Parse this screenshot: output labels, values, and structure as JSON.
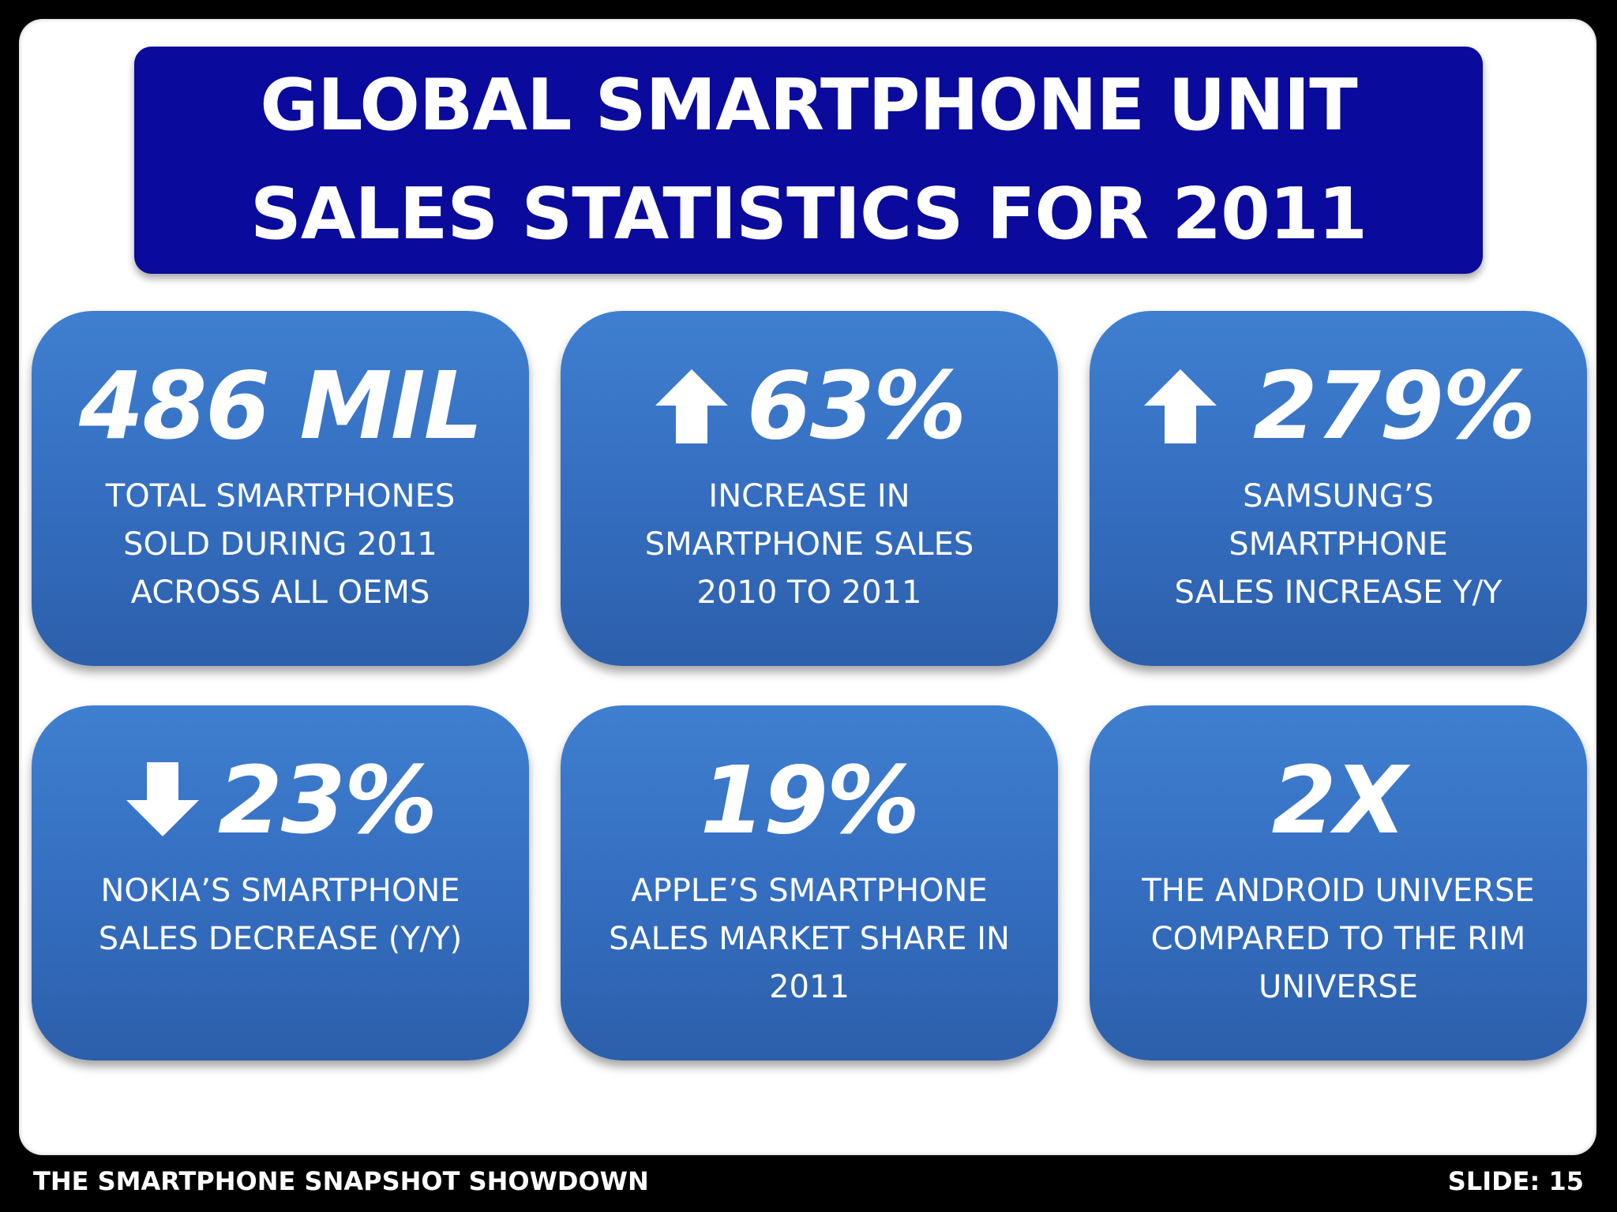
{
  "title": {
    "line1": "GLOBAL SMARTPHONE UNIT",
    "line2": "SALES STATISTICS FOR 2011"
  },
  "cards": [
    {
      "value": "486 MIL",
      "arrow": "none",
      "lines": [
        "TOTAL SMARTPHONES",
        "SOLD DURING 2011",
        "ACROSS ALL OEMS"
      ]
    },
    {
      "value": "63%",
      "arrow": "arrow-up-icon",
      "lines": [
        "INCREASE IN",
        "SMARTPHONE SALES",
        "2010 TO 2011"
      ]
    },
    {
      "value": "279%",
      "arrow": "arrow-up-icon",
      "lines": [
        "SAMSUNG’S",
        "SMARTPHONE",
        "SALES INCREASE Y/Y"
      ]
    },
    {
      "value": "23%",
      "arrow": "arrow-down-icon",
      "lines": [
        "NOKIA’S SMARTPHONE",
        "SALES DECREASE (Y/Y)"
      ]
    },
    {
      "value": "19%",
      "arrow": "none",
      "lines": [
        "APPLE’S SMARTPHONE",
        "SALES MARKET SHARE IN",
        "2011"
      ]
    },
    {
      "value": "2X",
      "arrow": "none",
      "lines": [
        "THE ANDROID UNIVERSE",
        "COMPARED TO THE RIM",
        "UNIVERSE"
      ]
    }
  ],
  "footer": {
    "left": "THE SMARTPHONE SNAPSHOT SHOWDOWN",
    "right": "SLIDE: 15"
  },
  "colors": {
    "title_bg": "#0a0a9c",
    "card_top": "#3f7fd0",
    "card_bottom": "#2c5fab",
    "background": "#000000"
  }
}
